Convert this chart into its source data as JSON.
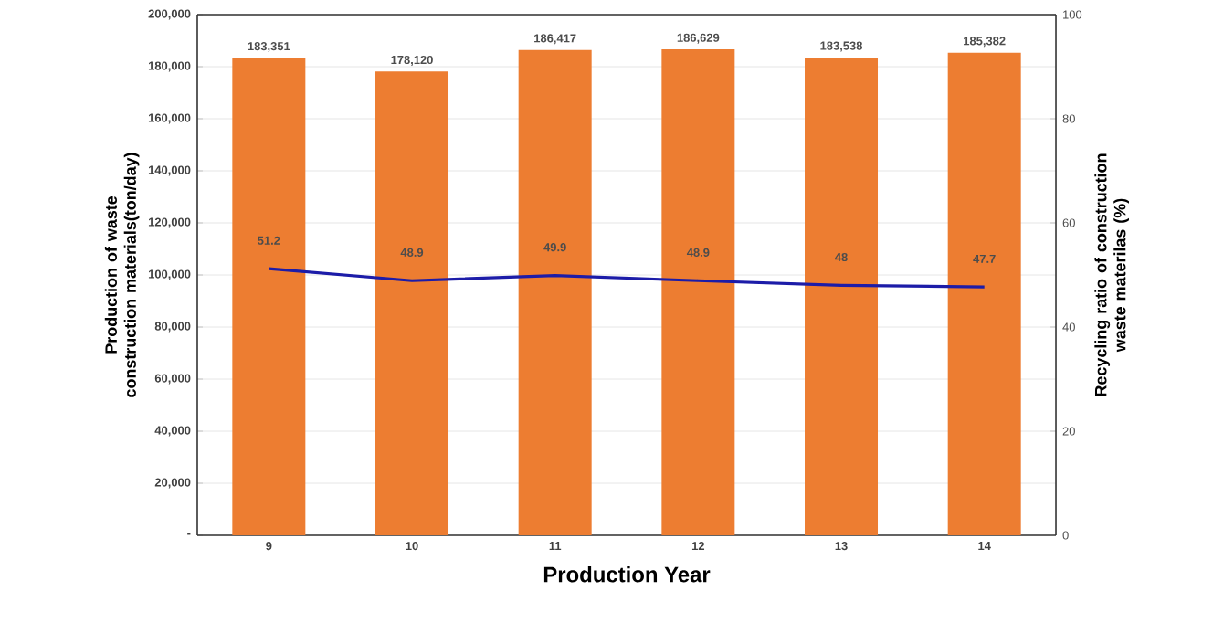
{
  "chart_data": {
    "type": "bar",
    "xlabel": "Production Year",
    "ylabel": "Production of waste construction materials(ton/day)",
    "y2label": "Recycling ratio of construction waste materilas (%)",
    "categories": [
      "9",
      "10",
      "11",
      "12",
      "13",
      "14"
    ],
    "series": [
      {
        "color": "#ed7d31",
        "values": [
          183351,
          178120,
          186417,
          186629,
          183538,
          185382
        ],
        "value_labels": [
          "183,351",
          "178,120",
          "186,417",
          "186,629",
          "183,538",
          "185,382"
        ]
      },
      {
        "type": "line",
        "axis": "y2",
        "color": "#1c1ca8",
        "values": [
          51.2,
          48.9,
          49.9,
          48.9,
          48,
          47.7
        ],
        "value_labels": [
          "51.2",
          "48.9",
          "49.9",
          "48.9",
          "48",
          "47.7"
        ]
      }
    ],
    "ylim": [
      0,
      200000
    ],
    "yticks": [
      {
        "value": 0,
        "label": "-"
      },
      {
        "value": 20000,
        "label": "20,000"
      },
      {
        "value": 40000,
        "label": "40,000"
      },
      {
        "value": 60000,
        "label": "60,000"
      },
      {
        "value": 80000,
        "label": "80,000"
      },
      {
        "value": 100000,
        "label": "100,000"
      },
      {
        "value": 120000,
        "label": "120,000"
      },
      {
        "value": 140000,
        "label": "140,000"
      },
      {
        "value": 160000,
        "label": "160,000"
      },
      {
        "value": 180000,
        "label": "180,000"
      },
      {
        "value": 200000,
        "label": "200,000"
      }
    ],
    "y2lim": [
      0,
      100
    ],
    "y2ticks": [
      0,
      20,
      40,
      60,
      80,
      100
    ],
    "grid": "y",
    "marker": "none",
    "line_style": "solid"
  }
}
